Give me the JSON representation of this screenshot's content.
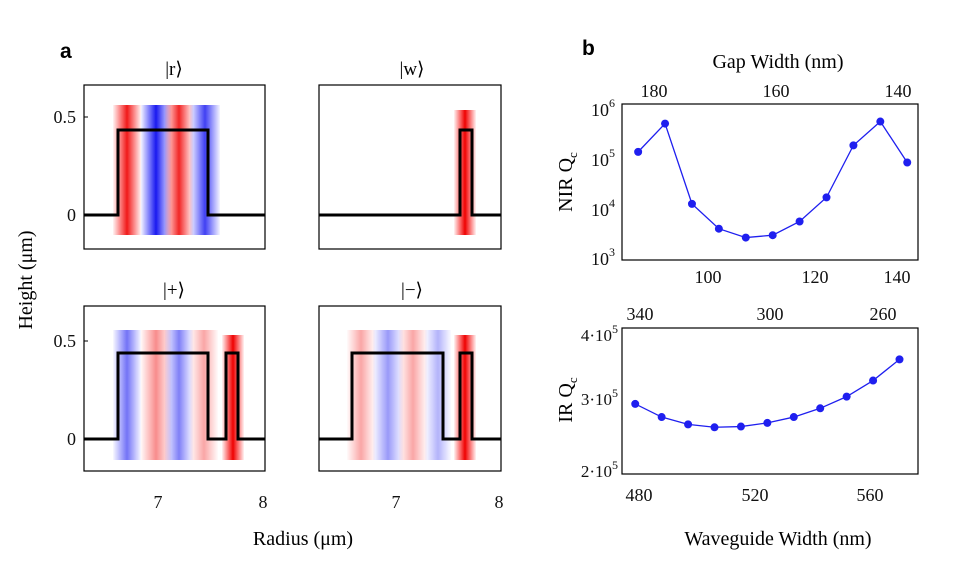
{
  "panel_labels": {
    "a": "a",
    "b": "b"
  },
  "panel_a": {
    "ylabel": "Height (μm)",
    "xlabel": "Radius (μm)",
    "yticks": [
      "0.5",
      "0"
    ],
    "xticks": [
      "7",
      "8"
    ],
    "modes": [
      {
        "label": "|r⟩"
      },
      {
        "label": "|w⟩"
      },
      {
        "label": "|+⟩"
      },
      {
        "label": "|−⟩"
      }
    ]
  },
  "chart_data": [
    {
      "type": "line",
      "title": "",
      "ylabel_main": "NIR Q",
      "ylabel_sub": "c",
      "xlabel_top": "Gap Width (nm)",
      "y_scale": "log",
      "ylim": [
        1000,
        1000000
      ],
      "xlim": [
        87,
        142
      ],
      "x_bottom_ticks": [
        "100",
        "120",
        "140"
      ],
      "x_top_ticks": [
        "180",
        "160",
        "140"
      ],
      "y_tick_base": [
        "10",
        "10",
        "10",
        "10"
      ],
      "y_tick_exp": [
        "6",
        "5",
        "4",
        "3"
      ],
      "series": [
        {
          "name": "NIR Qc",
          "x": [
            90,
            95,
            100,
            105,
            110,
            115,
            120,
            125,
            130,
            135,
            140
          ],
          "y": [
            120000,
            420000,
            12000,
            4000,
            2700,
            3000,
            5500,
            16000,
            160000,
            460000,
            75000
          ]
        }
      ]
    },
    {
      "type": "line",
      "title": "",
      "ylabel_main": "IR Q",
      "ylabel_sub": "c",
      "xlabel": "Waveguide Width (nm)",
      "y_scale": "linear",
      "ylim": [
        200000,
        400000
      ],
      "xlim": [
        470,
        582
      ],
      "x_bottom_ticks": [
        "480",
        "520",
        "560"
      ],
      "x_top_ticks": [
        "340",
        "300",
        "260"
      ],
      "y_tick_labels": [
        "4·10",
        "3·10",
        "2·10"
      ],
      "y_tick_exp": [
        "5",
        "5",
        "5"
      ],
      "series": [
        {
          "name": "IR Qc",
          "x": [
            475,
            485,
            495,
            505,
            515,
            525,
            535,
            545,
            555,
            565,
            575
          ],
          "y": [
            296000,
            278000,
            268000,
            264000,
            265000,
            270000,
            278000,
            290000,
            306000,
            328000,
            357000
          ]
        }
      ]
    }
  ]
}
